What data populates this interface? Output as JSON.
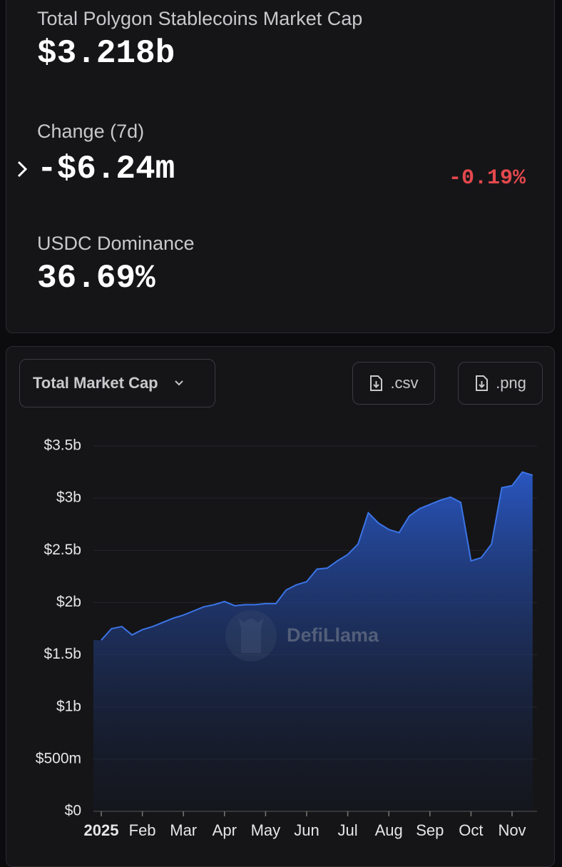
{
  "stats": {
    "market_cap": {
      "label": "Total Polygon Stablecoins Market Cap",
      "value": "$3.218b"
    },
    "change": {
      "label": "Change (7d)",
      "value": "-$6.24m",
      "percent": "-0.19%"
    },
    "dominance": {
      "label": "USDC Dominance",
      "value": "36.69%"
    }
  },
  "controls": {
    "dropdown": "Total Market Cap",
    "csv": ".csv",
    "png": ".png"
  },
  "watermark": "DefiLlama",
  "chart_data": {
    "type": "area",
    "categories": [
      "2025",
      null,
      null,
      null,
      "Feb",
      null,
      null,
      null,
      "Mar",
      null,
      null,
      null,
      "Apr",
      null,
      null,
      null,
      "May",
      null,
      null,
      null,
      "Jun",
      null,
      null,
      null,
      "Jul",
      null,
      null,
      null,
      "Aug",
      null,
      null,
      null,
      "Sep",
      null,
      null,
      null,
      "Oct",
      null,
      null,
      null,
      "Nov",
      null,
      null
    ],
    "values": [
      1.64,
      1.75,
      1.77,
      1.69,
      1.74,
      1.77,
      1.81,
      1.85,
      1.88,
      1.92,
      1.96,
      1.98,
      2.01,
      1.97,
      1.98,
      1.98,
      1.99,
      1.99,
      2.12,
      2.17,
      2.2,
      2.32,
      2.33,
      2.4,
      2.46,
      2.56,
      2.86,
      2.76,
      2.7,
      2.67,
      2.83,
      2.9,
      2.94,
      2.98,
      3.01,
      2.96,
      2.4,
      2.43,
      2.56,
      3.1,
      3.12,
      3.25,
      3.22
    ],
    "color": "#3b74e6",
    "ylim": [
      0,
      3.5
    ],
    "yticks": [
      {
        "value": 0,
        "label": "$0"
      },
      {
        "value": 0.5,
        "label": "$500m"
      },
      {
        "value": 1,
        "label": "$1b"
      },
      {
        "value": 1.5,
        "label": "$1.5b"
      },
      {
        "value": 2,
        "label": "$2b"
      },
      {
        "value": 2.5,
        "label": "$2.5b"
      },
      {
        "value": 3,
        "label": "$3b"
      },
      {
        "value": 3.5,
        "label": "$3.5b"
      }
    ],
    "grid": true
  }
}
